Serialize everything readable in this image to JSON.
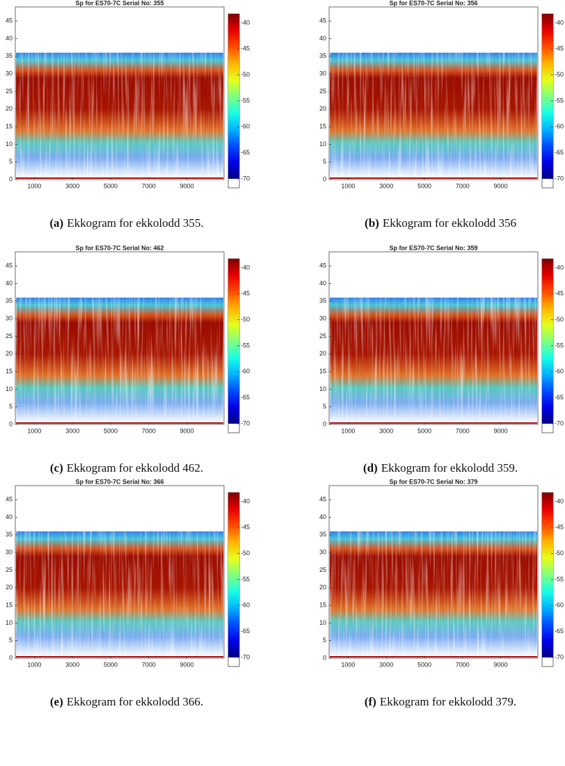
{
  "chart_data": [
    {
      "type": "heatmap",
      "title": "Sp for ES70-7C Serial No: 355",
      "xlim": [
        0,
        10950
      ],
      "xticks": [
        1000,
        3000,
        5000,
        7000,
        9000
      ],
      "ylim": [
        0,
        49
      ],
      "yticks": [
        0,
        5,
        10,
        15,
        20,
        25,
        30,
        35,
        40,
        45
      ],
      "colormap": "jet",
      "clim": [
        -70,
        -40
      ],
      "cticks": [
        -70,
        -65,
        -60,
        -55,
        -50,
        -45,
        -40
      ],
      "caption_label": "(a)",
      "caption": "Ekkogram for ekkolodd 355."
    },
    {
      "type": "heatmap",
      "title": "Sp for ES70-7C Serial No: 356",
      "xlim": [
        0,
        10950
      ],
      "xticks": [
        1000,
        3000,
        5000,
        7000,
        9000
      ],
      "ylim": [
        0,
        49
      ],
      "yticks": [
        0,
        5,
        10,
        15,
        20,
        25,
        30,
        35,
        40,
        45
      ],
      "colormap": "jet",
      "clim": [
        -70,
        -40
      ],
      "cticks": [
        -70,
        -65,
        -60,
        -55,
        -50,
        -45,
        -40
      ],
      "caption_label": "(b)",
      "caption": "Ekkogram for ekkolodd 356"
    },
    {
      "type": "heatmap",
      "title": "Sp for ES70-7C Serial No: 462",
      "xlim": [
        0,
        10950
      ],
      "xticks": [
        1000,
        3000,
        5000,
        7000,
        9000
      ],
      "ylim": [
        0,
        49
      ],
      "yticks": [
        0,
        5,
        10,
        15,
        20,
        25,
        30,
        35,
        40,
        45
      ],
      "colormap": "jet",
      "clim": [
        -70,
        -40
      ],
      "cticks": [
        -70,
        -65,
        -60,
        -55,
        -50,
        -45,
        -40
      ],
      "caption_label": "(c)",
      "caption": "Ekkogram for ekkolodd 462."
    },
    {
      "type": "heatmap",
      "title": "Sp for ES70-7C Serial No: 359",
      "xlim": [
        0,
        10950
      ],
      "xticks": [
        1000,
        3000,
        5000,
        7000,
        9000
      ],
      "ylim": [
        0,
        49
      ],
      "yticks": [
        0,
        5,
        10,
        15,
        20,
        25,
        30,
        35,
        40,
        45
      ],
      "colormap": "jet",
      "clim": [
        -70,
        -40
      ],
      "cticks": [
        -70,
        -65,
        -60,
        -55,
        -50,
        -45,
        -40
      ],
      "caption_label": "(d)",
      "caption": "Ekkogram for ekkolodd 359."
    },
    {
      "type": "heatmap",
      "title": "Sp for ES70-7C Serial No: 366",
      "xlim": [
        0,
        10950
      ],
      "xticks": [
        1000,
        3000,
        5000,
        7000,
        9000
      ],
      "ylim": [
        0,
        49
      ],
      "yticks": [
        0,
        5,
        10,
        15,
        20,
        25,
        30,
        35,
        40,
        45
      ],
      "colormap": "jet",
      "clim": [
        -70,
        -40
      ],
      "cticks": [
        -70,
        -65,
        -60,
        -55,
        -50,
        -45,
        -40
      ],
      "caption_label": "(e)",
      "caption": "Ekkogram for ekkolodd 366."
    },
    {
      "type": "heatmap",
      "title": "Sp for ES70-7C Serial No: 379",
      "xlim": [
        0,
        10950
      ],
      "xticks": [
        1000,
        3000,
        5000,
        7000,
        9000
      ],
      "ylim": [
        0,
        49
      ],
      "yticks": [
        0,
        5,
        10,
        15,
        20,
        25,
        30,
        35,
        40,
        45
      ],
      "colormap": "jet",
      "clim": [
        -70,
        -40
      ],
      "cticks": [
        -70,
        -65,
        -60,
        -55,
        -50,
        -45,
        -40
      ],
      "caption_label": "(f)",
      "caption": "Ekkogram for ekkolodd 379."
    }
  ]
}
